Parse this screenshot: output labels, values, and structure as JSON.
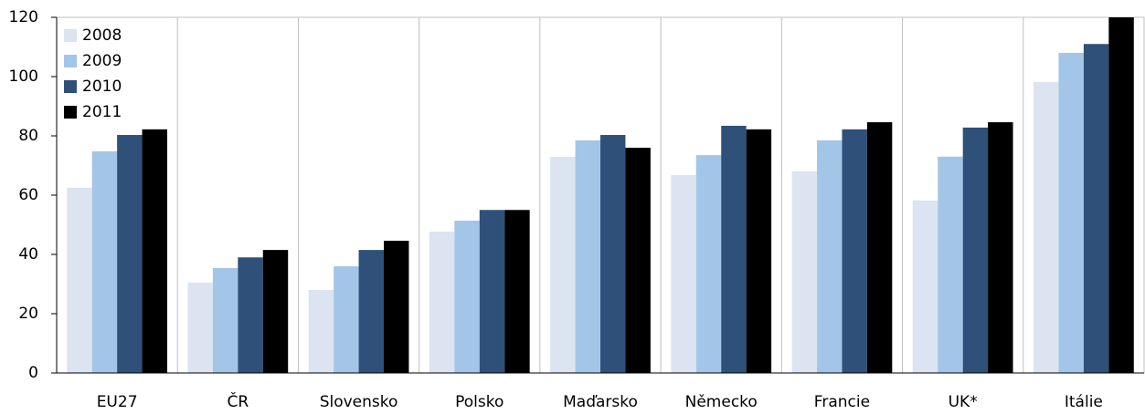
{
  "chart_data": {
    "type": "bar",
    "categories": [
      "EU27",
      "ČR",
      "Slovensko",
      "Polsko",
      "Maďarsko",
      "Německo",
      "Francie",
      "UK*",
      "Itálie"
    ],
    "series": [
      {
        "name": "2008",
        "color": "#dbe4f0",
        "values": [
          62.5,
          30.5,
          28,
          47.7,
          72.9,
          66.8,
          68,
          58.2,
          98.2
        ]
      },
      {
        "name": "2009",
        "color": "#a3c6e8",
        "values": [
          74.8,
          35.4,
          36,
          51.4,
          78.5,
          73.5,
          78.5,
          73,
          108
        ]
      },
      {
        "name": "2010",
        "color": "#2f5078",
        "values": [
          80.3,
          39,
          41.5,
          55,
          80.3,
          83.4,
          82.2,
          82.8,
          111
        ]
      },
      {
        "name": "2011",
        "color": "#000000",
        "values": [
          82.2,
          41.5,
          44.6,
          55,
          76,
          82.2,
          84.6,
          84.6,
          120
        ]
      }
    ],
    "ylim": [
      0,
      120
    ],
    "yticks": [
      0,
      20,
      40,
      60,
      80,
      100,
      120
    ],
    "legend": "top-left"
  }
}
